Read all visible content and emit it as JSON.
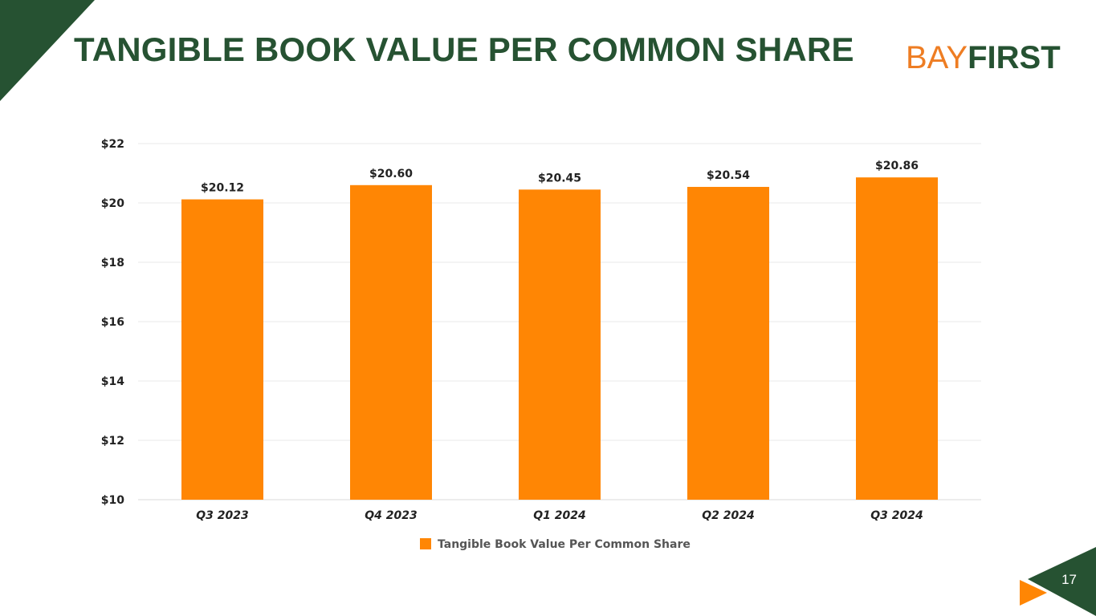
{
  "slide": {
    "title": "TANGIBLE BOOK VALUE PER COMMON SHARE",
    "page_number": "17",
    "logo": {
      "part1": "BAY",
      "part2": "FIRST"
    },
    "colors": {
      "brand_green": "#265232",
      "brand_orange": "#ee7d23",
      "bar": "#ff8604"
    }
  },
  "chart_data": {
    "type": "bar",
    "title": "",
    "xlabel": "",
    "ylabel": "",
    "categories": [
      "Q3 2023",
      "Q4 2023",
      "Q1 2024",
      "Q2 2024",
      "Q3 2024"
    ],
    "series": [
      {
        "name": "Tangible Book Value Per Common Share",
        "values": [
          20.12,
          20.6,
          20.45,
          20.54,
          20.86
        ],
        "labels": [
          "$20.12",
          "$20.60",
          "$20.45",
          "$20.54",
          "$20.86"
        ],
        "color": "#ff8604"
      }
    ],
    "ylim": [
      10,
      22
    ],
    "yticks": [
      10,
      12,
      14,
      16,
      18,
      20,
      22
    ],
    "ytick_labels": [
      "$10",
      "$12",
      "$14",
      "$16",
      "$18",
      "$20",
      "$22"
    ],
    "grid": true,
    "legend": "bottom"
  }
}
